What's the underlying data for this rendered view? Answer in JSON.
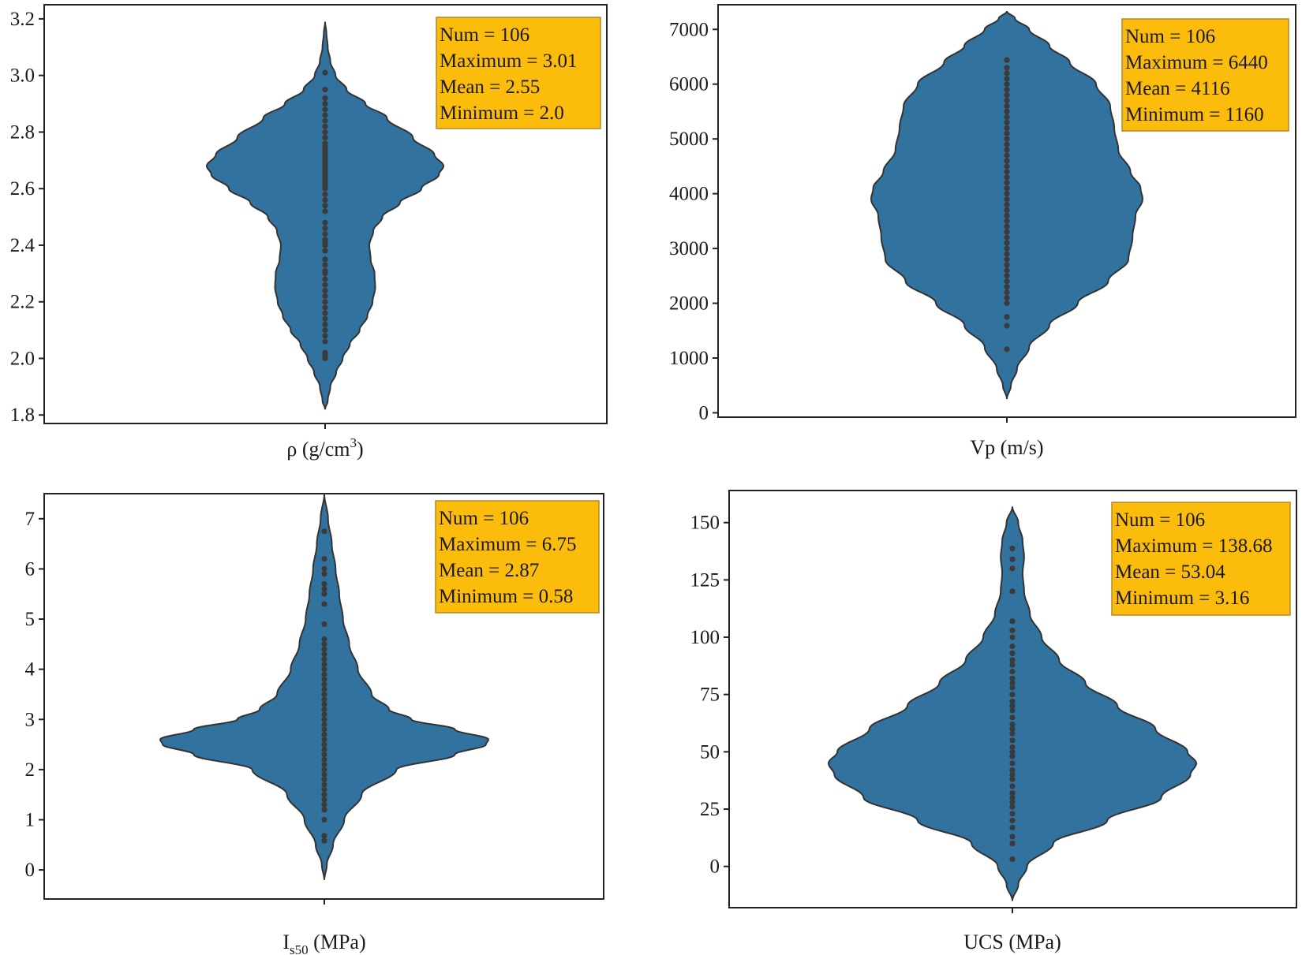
{
  "colors": {
    "violin_fill": "#31729f",
    "violin_stroke": "#333333",
    "dots": "#3a3a3a",
    "stats_box_fill": "#fcbc0c",
    "stats_box_stroke": "#b08a2a",
    "axis": "#222222"
  },
  "chart_data": [
    {
      "type": "violin",
      "xlabel": "ρ (g/cm3)",
      "xlabel_parts": {
        "main": "ρ (g/cm",
        "sup": "3",
        "end": ")"
      },
      "ylim": [
        1.77,
        3.25
      ],
      "yticks": [
        1.8,
        2.0,
        2.2,
        2.4,
        2.6,
        2.8,
        3.0,
        3.2
      ],
      "tick_labels": [
        "1.8",
        "2.0",
        "2.2",
        "2.4",
        "2.6",
        "2.8",
        "3.0",
        "3.2"
      ],
      "violin_range": [
        1.82,
        3.19
      ],
      "density_profile": [
        [
          1.82,
          0.0
        ],
        [
          1.85,
          0.04
        ],
        [
          1.9,
          0.08
        ],
        [
          1.95,
          0.17
        ],
        [
          2.0,
          0.27
        ],
        [
          2.05,
          0.38
        ],
        [
          2.1,
          0.53
        ],
        [
          2.15,
          0.65
        ],
        [
          2.2,
          0.73
        ],
        [
          2.25,
          0.77
        ],
        [
          2.3,
          0.76
        ],
        [
          2.35,
          0.7
        ],
        [
          2.4,
          0.68
        ],
        [
          2.45,
          0.74
        ],
        [
          2.5,
          0.88
        ],
        [
          2.55,
          1.15
        ],
        [
          2.6,
          1.48
        ],
        [
          2.65,
          1.75
        ],
        [
          2.68,
          1.82
        ],
        [
          2.72,
          1.68
        ],
        [
          2.78,
          1.35
        ],
        [
          2.85,
          0.95
        ],
        [
          2.9,
          0.62
        ],
        [
          2.95,
          0.33
        ],
        [
          3.0,
          0.16
        ],
        [
          3.05,
          0.08
        ],
        [
          3.1,
          0.04
        ],
        [
          3.15,
          0.02
        ],
        [
          3.19,
          0.0
        ]
      ],
      "points": [
        2.0,
        2.01,
        2.02,
        2.06,
        2.08,
        2.1,
        2.12,
        2.14,
        2.16,
        2.18,
        2.2,
        2.22,
        2.24,
        2.26,
        2.28,
        2.3,
        2.31,
        2.33,
        2.35,
        2.38,
        2.4,
        2.41,
        2.42,
        2.44,
        2.46,
        2.48,
        2.52,
        2.54,
        2.56,
        2.58,
        2.6,
        2.61,
        2.62,
        2.63,
        2.64,
        2.65,
        2.66,
        2.67,
        2.68,
        2.69,
        2.7,
        2.71,
        2.72,
        2.73,
        2.74,
        2.75,
        2.76,
        2.78,
        2.8,
        2.82,
        2.84,
        2.86,
        2.88,
        2.9,
        2.92,
        2.95,
        3.01
      ],
      "stats": [
        "Num = 106",
        "Maximum = 3.01",
        "Mean = 2.55",
        "Minimum = 2.0"
      ]
    },
    {
      "type": "violin",
      "xlabel": "Vp (m/s)",
      "ylim": [
        -80,
        7450
      ],
      "yticks": [
        0,
        1000,
        2000,
        3000,
        4000,
        5000,
        6000,
        7000
      ],
      "tick_labels": [
        "0",
        "1000",
        "2000",
        "3000",
        "4000",
        "5000",
        "6000",
        "7000"
      ],
      "violin_range": [
        250,
        7330
      ],
      "density_profile": [
        [
          250,
          0.0
        ],
        [
          500,
          0.04
        ],
        [
          800,
          0.1
        ],
        [
          1200,
          0.22
        ],
        [
          1600,
          0.42
        ],
        [
          2000,
          0.7
        ],
        [
          2400,
          1.0
        ],
        [
          2800,
          1.2
        ],
        [
          3200,
          1.24
        ],
        [
          3600,
          1.27
        ],
        [
          3900,
          1.34
        ],
        [
          4100,
          1.32
        ],
        [
          4400,
          1.22
        ],
        [
          4800,
          1.1
        ],
        [
          5200,
          1.06
        ],
        [
          5600,
          1.02
        ],
        [
          6000,
          0.88
        ],
        [
          6400,
          0.62
        ],
        [
          6700,
          0.42
        ],
        [
          7000,
          0.22
        ],
        [
          7200,
          0.08
        ],
        [
          7330,
          0.0
        ]
      ],
      "points": [
        1160,
        1590,
        1750,
        2000,
        2100,
        2200,
        2300,
        2400,
        2500,
        2600,
        2700,
        2800,
        2900,
        3000,
        3100,
        3200,
        3300,
        3400,
        3500,
        3600,
        3700,
        3800,
        3900,
        4000,
        4100,
        4200,
        4300,
        4400,
        4500,
        4600,
        4700,
        4800,
        4900,
        5000,
        5100,
        5200,
        5300,
        5400,
        5500,
        5600,
        5700,
        5800,
        5900,
        6000,
        6100,
        6200,
        6300,
        6440
      ],
      "stats": [
        "Num = 106",
        "Maximum = 6440",
        "Mean = 4116",
        "Minimum = 1160"
      ]
    },
    {
      "type": "violin",
      "xlabel": "Is50 (MPa)",
      "xlabel_parts": {
        "main": "I",
        "sub": "s50",
        "end": " (MPa)"
      },
      "ylim": [
        -0.58,
        7.5
      ],
      "yticks": [
        0,
        1,
        2,
        3,
        4,
        5,
        6,
        7
      ],
      "tick_labels": [
        "0",
        "1",
        "2",
        "3",
        "4",
        "5",
        "6",
        "7"
      ],
      "violin_range": [
        -0.2,
        7.5
      ],
      "density_profile": [
        [
          -0.2,
          0.0
        ],
        [
          0.1,
          0.02
        ],
        [
          0.5,
          0.07
        ],
        [
          1.0,
          0.16
        ],
        [
          1.5,
          0.3
        ],
        [
          2.0,
          0.58
        ],
        [
          2.3,
          1.05
        ],
        [
          2.5,
          1.3
        ],
        [
          2.6,
          1.32
        ],
        [
          2.8,
          1.05
        ],
        [
          3.0,
          0.7
        ],
        [
          3.2,
          0.52
        ],
        [
          3.5,
          0.38
        ],
        [
          4.0,
          0.27
        ],
        [
          4.5,
          0.2
        ],
        [
          5.0,
          0.15
        ],
        [
          5.5,
          0.12
        ],
        [
          6.0,
          0.09
        ],
        [
          6.5,
          0.06
        ],
        [
          7.0,
          0.03
        ],
        [
          7.5,
          0.0
        ]
      ],
      "points": [
        0.58,
        0.68,
        1.0,
        1.2,
        1.3,
        1.4,
        1.5,
        1.6,
        1.7,
        1.8,
        1.9,
        2.0,
        2.1,
        2.2,
        2.3,
        2.4,
        2.5,
        2.6,
        2.7,
        2.8,
        2.9,
        3.0,
        3.1,
        3.2,
        3.3,
        3.4,
        3.5,
        3.6,
        3.7,
        3.8,
        3.9,
        4.0,
        4.1,
        4.2,
        4.3,
        4.4,
        4.5,
        4.6,
        4.9,
        5.3,
        5.5,
        5.6,
        5.7,
        5.9,
        6.0,
        6.2,
        6.75
      ],
      "stats": [
        "Num = 106",
        "Maximum = 6.75",
        "Mean = 2.87",
        "Minimum = 0.58"
      ]
    },
    {
      "type": "violin",
      "xlabel": "UCS (MPa)",
      "ylim": [
        -18,
        164
      ],
      "yticks": [
        0,
        25,
        50,
        75,
        100,
        125,
        150
      ],
      "tick_labels": [
        "0",
        "25",
        "50",
        "75",
        "100",
        "125",
        "150"
      ],
      "violin_range": [
        -15,
        157
      ],
      "density_profile": [
        [
          -15,
          0.0
        ],
        [
          -8,
          0.04
        ],
        [
          0,
          0.1
        ],
        [
          10,
          0.28
        ],
        [
          20,
          0.65
        ],
        [
          30,
          1.02
        ],
        [
          40,
          1.22
        ],
        [
          45,
          1.26
        ],
        [
          50,
          1.2
        ],
        [
          60,
          0.98
        ],
        [
          70,
          0.72
        ],
        [
          80,
          0.5
        ],
        [
          90,
          0.32
        ],
        [
          100,
          0.2
        ],
        [
          110,
          0.12
        ],
        [
          120,
          0.08
        ],
        [
          128,
          0.07
        ],
        [
          135,
          0.08
        ],
        [
          142,
          0.07
        ],
        [
          150,
          0.04
        ],
        [
          157,
          0.0
        ]
      ],
      "points": [
        3.16,
        10,
        13,
        17,
        20,
        23,
        26,
        28,
        30,
        32,
        35,
        38,
        40,
        42,
        45,
        48,
        50,
        52,
        55,
        58,
        60,
        62,
        65,
        68,
        70,
        72,
        75,
        78,
        80,
        82,
        85,
        88,
        90,
        93,
        96,
        100,
        103,
        107,
        120,
        130,
        134,
        138.68
      ],
      "stats": [
        "Num = 106",
        "Maximum = 138.68",
        "Mean = 53.04",
        "Minimum = 3.16"
      ]
    }
  ]
}
